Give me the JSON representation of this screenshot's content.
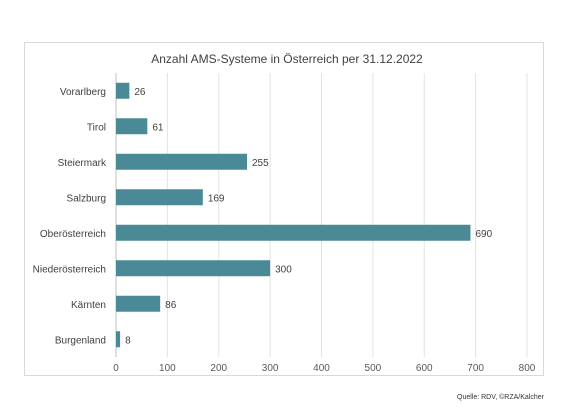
{
  "chart_data": {
    "type": "bar",
    "orientation": "horizontal",
    "title": "Anzahl AMS-Systeme in Österreich per 31.12.2022",
    "xlabel": "",
    "ylabel": "",
    "categories": [
      "Vorarlberg",
      "Tirol",
      "Steiermark",
      "Salzburg",
      "Oberösterreich",
      "Niederösterreich",
      "Kärnten",
      "Burgenland"
    ],
    "values": [
      26,
      61,
      255,
      169,
      690,
      300,
      86,
      8
    ],
    "xlim": [
      0,
      800
    ],
    "xticks": [
      0,
      100,
      200,
      300,
      400,
      500,
      600,
      700,
      800
    ],
    "grid": "vertical",
    "legend": "none",
    "bar_color": "#4a8a97",
    "data_labels": true
  },
  "source_note": "Quelle: RDV, ©RZA/Kalcher"
}
